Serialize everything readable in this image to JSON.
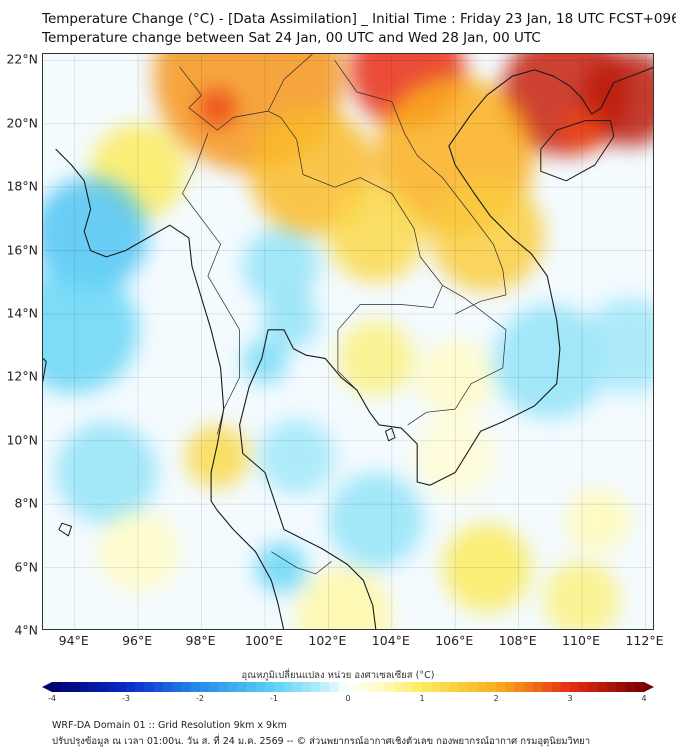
{
  "title": {
    "line1": "Temperature Change (°C) - [Data Assimilation] _ Initial Time : Friday 23 Jan, 18 UTC FCST+096",
    "line2": "Temperature change between Sat 24 Jan, 00 UTC and Wed 28 Jan, 00 UTC"
  },
  "map": {
    "extent": {
      "lon_min": 93,
      "lon_max": 112.3,
      "lat_min": 4,
      "lat_max": 22.2
    },
    "lat_labels": [
      {
        "lat": 22,
        "text": "22°N"
      },
      {
        "lat": 20,
        "text": "20°N"
      },
      {
        "lat": 18,
        "text": "18°N"
      },
      {
        "lat": 16,
        "text": "16°N"
      },
      {
        "lat": 14,
        "text": "14°N"
      },
      {
        "lat": 12,
        "text": "12°N"
      },
      {
        "lat": 10,
        "text": "10°N"
      },
      {
        "lat": 8,
        "text": "8°N"
      },
      {
        "lat": 6,
        "text": "6°N"
      },
      {
        "lat": 4,
        "text": "4°N"
      }
    ],
    "lon_labels": [
      {
        "lon": 94,
        "text": "94°E"
      },
      {
        "lon": 96,
        "text": "96°E"
      },
      {
        "lon": 98,
        "text": "98°E"
      },
      {
        "lon": 100,
        "text": "100°E"
      },
      {
        "lon": 102,
        "text": "102°E"
      },
      {
        "lon": 104,
        "text": "104°E"
      },
      {
        "lon": 106,
        "text": "106°E"
      },
      {
        "lon": 108,
        "text": "108°E"
      },
      {
        "lon": 110,
        "text": "110°E"
      },
      {
        "lon": 112,
        "text": "112°E"
      }
    ],
    "field_blobs": [
      {
        "lon": 99.5,
        "lat": 21.5,
        "value": 2.2,
        "spread": 3.0
      },
      {
        "lon": 98.5,
        "lat": 20.5,
        "value": 2.8,
        "spread": 0.6
      },
      {
        "lon": 104.5,
        "lat": 21.7,
        "value": 3.0,
        "spread": 1.8
      },
      {
        "lon": 109.5,
        "lat": 21.0,
        "value": 3.3,
        "spread": 2.0
      },
      {
        "lon": 111.5,
        "lat": 20.8,
        "value": 3.4,
        "spread": 1.5
      },
      {
        "lon": 110.0,
        "lat": 19.8,
        "value": 2.8,
        "spread": 0.7
      },
      {
        "lon": 106.0,
        "lat": 19.0,
        "value": 2.0,
        "spread": 2.5
      },
      {
        "lon": 101.5,
        "lat": 18.5,
        "value": 1.8,
        "spread": 2.0
      },
      {
        "lon": 103.5,
        "lat": 16.5,
        "value": 1.3,
        "spread": 1.5
      },
      {
        "lon": 107.0,
        "lat": 16.5,
        "value": 1.5,
        "spread": 1.8
      },
      {
        "lon": 96.0,
        "lat": 18.5,
        "value": 1.0,
        "spread": 1.5
      },
      {
        "lon": 94.5,
        "lat": 16.5,
        "value": -1.2,
        "spread": 1.8
      },
      {
        "lon": 94.0,
        "lat": 13.5,
        "value": -0.9,
        "spread": 2.0
      },
      {
        "lon": 100.5,
        "lat": 15.5,
        "value": -0.6,
        "spread": 1.2
      },
      {
        "lon": 100.8,
        "lat": 13.8,
        "value": -0.6,
        "spread": 0.9
      },
      {
        "lon": 100.0,
        "lat": 12.5,
        "value": -0.8,
        "spread": 0.7
      },
      {
        "lon": 103.5,
        "lat": 12.6,
        "value": 0.8,
        "spread": 1.2
      },
      {
        "lon": 106.0,
        "lat": 12.0,
        "value": 0.4,
        "spread": 1.2
      },
      {
        "lon": 109.0,
        "lat": 12.5,
        "value": -0.6,
        "spread": 1.8
      },
      {
        "lon": 111.5,
        "lat": 13.0,
        "value": -0.5,
        "spread": 1.5
      },
      {
        "lon": 98.5,
        "lat": 9.5,
        "value": 1.3,
        "spread": 1.0
      },
      {
        "lon": 95.0,
        "lat": 9.0,
        "value": -0.6,
        "spread": 1.6
      },
      {
        "lon": 96.0,
        "lat": 6.5,
        "value": 0.4,
        "spread": 1.3
      },
      {
        "lon": 101.0,
        "lat": 9.5,
        "value": -0.5,
        "spread": 1.2
      },
      {
        "lon": 103.5,
        "lat": 7.5,
        "value": -0.6,
        "spread": 1.5
      },
      {
        "lon": 100.5,
        "lat": 6.0,
        "value": -0.9,
        "spread": 0.8
      },
      {
        "lon": 102.5,
        "lat": 4.5,
        "value": 0.6,
        "spread": 1.5
      },
      {
        "lon": 107.0,
        "lat": 6.0,
        "value": 1.0,
        "spread": 1.4
      },
      {
        "lon": 110.0,
        "lat": 5.0,
        "value": 0.8,
        "spread": 1.2
      },
      {
        "lon": 110.5,
        "lat": 7.5,
        "value": 0.5,
        "spread": 1.0
      },
      {
        "lon": 106.0,
        "lat": 9.5,
        "value": 0.3,
        "spread": 1.3
      }
    ]
  },
  "colorbar": {
    "title": "อุณหภูมิเปลี่ยนแปลง หน่วย องศาเซลเซียส (°C)",
    "min": -4,
    "max": 4,
    "ticks": [
      "-4",
      "-3",
      "-2",
      "-1",
      "0",
      "1",
      "2",
      "3",
      "4"
    ]
  },
  "footer": {
    "line1": "WRF-DA Domain 01 :: Grid Resolution 9km x 9km",
    "line2": "ปรับปรุงข้อมูล ณ เวลา 01:00น. วัน ส. ที่ 24 ม.ค. 2569 -- © ส่วนพยากรณ์อากาศเชิงตัวเลข กองพยากรณ์อากาศ กรมอุตุนิยมวิทยา"
  }
}
